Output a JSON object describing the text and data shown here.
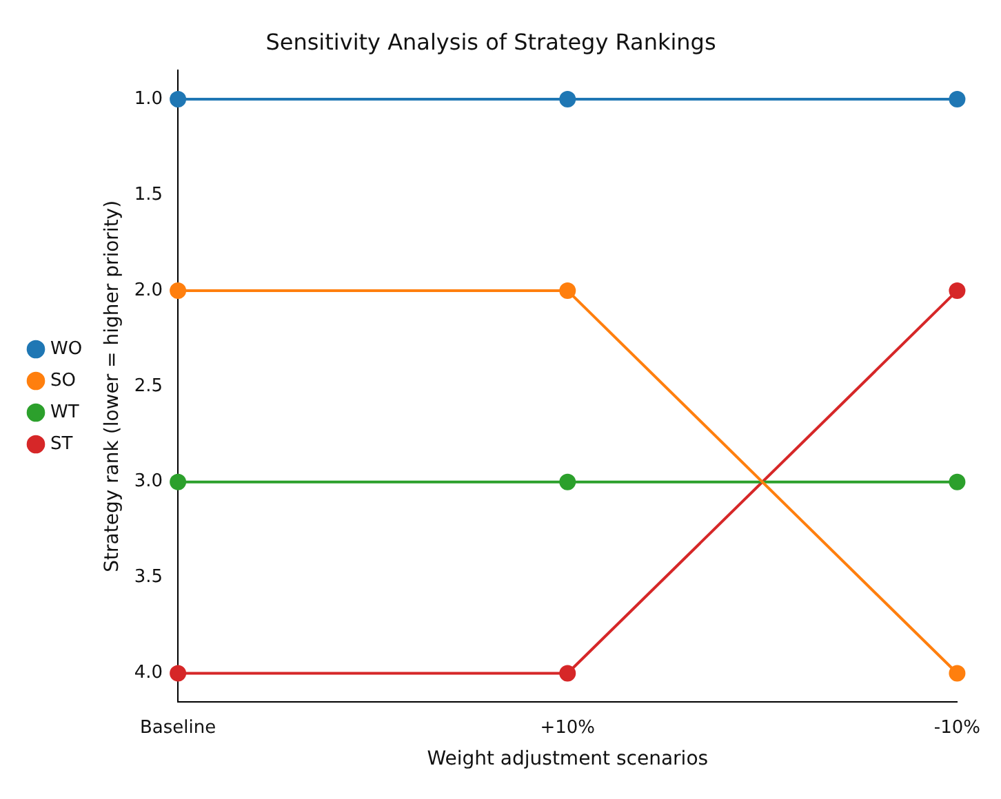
{
  "chart_data": {
    "type": "line",
    "title": "Sensitivity Analysis of Strategy Rankings",
    "xlabel": "Weight adjustment scenarios",
    "ylabel": "Strategy rank (lower = higher priority)",
    "categories": [
      "Baseline",
      "+10%",
      "-10%"
    ],
    "series": [
      {
        "name": "WO",
        "color": "#1f77b4",
        "values": [
          1,
          1,
          1
        ]
      },
      {
        "name": "SO",
        "color": "#ff7f0e",
        "values": [
          2,
          2,
          4
        ]
      },
      {
        "name": "WT",
        "color": "#2ca02c",
        "values": [
          3,
          3,
          3
        ]
      },
      {
        "name": "ST",
        "color": "#d62728",
        "values": [
          4,
          4,
          2
        ]
      }
    ],
    "ylim": [
      4.15,
      0.85
    ],
    "yticks": [
      {
        "value": 1,
        "label": "1.0"
      },
      {
        "value": 1.5,
        "label": "1.5"
      },
      {
        "value": 2,
        "label": "2.0"
      },
      {
        "value": 2.5,
        "label": "2.5"
      },
      {
        "value": 3,
        "label": "3.0"
      },
      {
        "value": 3.5,
        "label": "3.5"
      },
      {
        "value": 4,
        "label": "4.0"
      }
    ],
    "grid": false,
    "legend": "left",
    "marker": "circle",
    "line_style": "solid"
  }
}
